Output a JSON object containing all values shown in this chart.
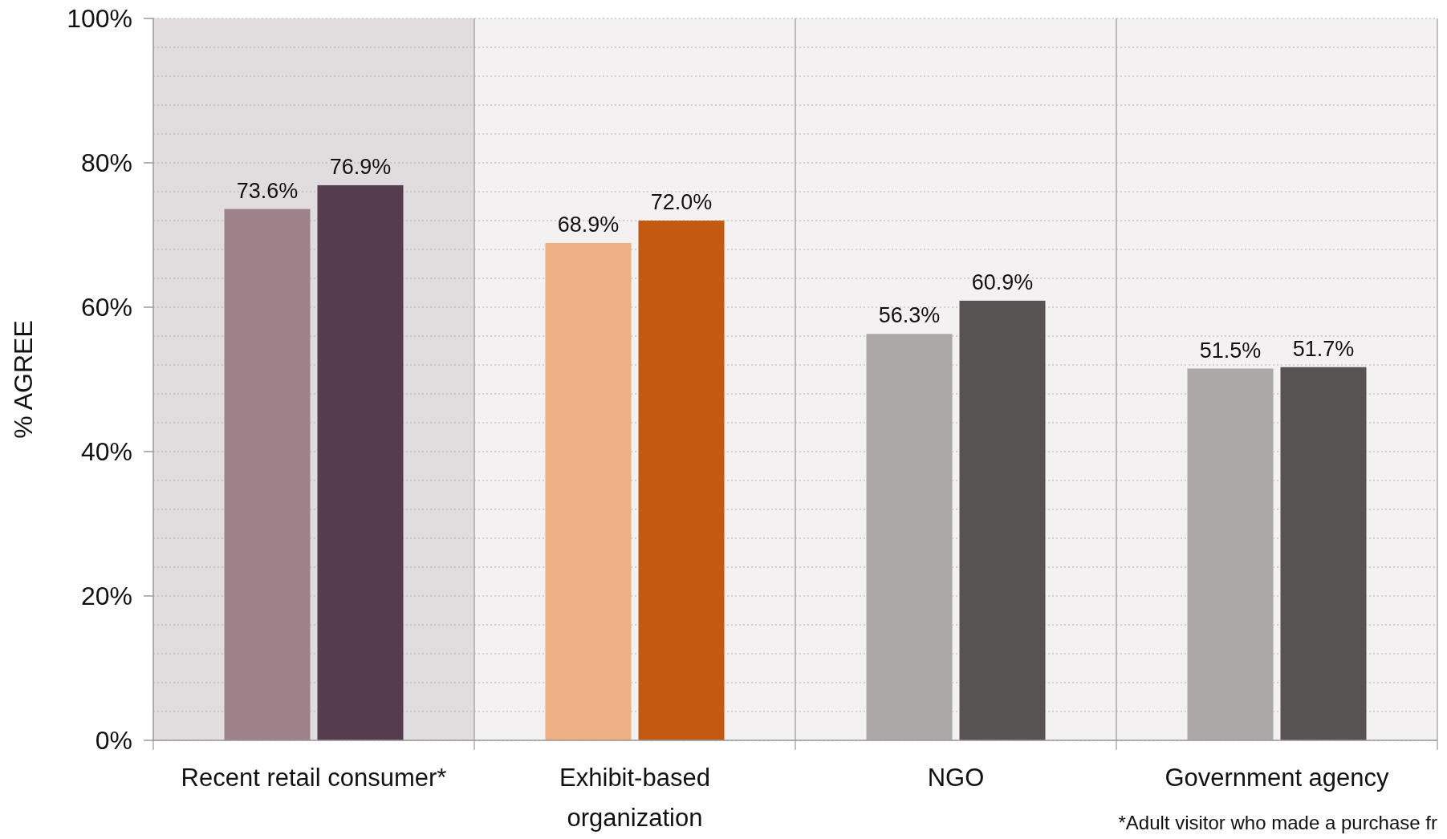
{
  "chart_data": {
    "type": "bar",
    "ylabel": "% AGREE",
    "categories": [
      "Recent retail consumer*",
      "Exhibit-based organization",
      "NGO",
      "Government agency"
    ],
    "series": [
      {
        "colors": [
          "#9d8389",
          "#ecb084",
          "#aca8a7",
          "#aca8a7"
        ],
        "values": [
          73.6,
          68.9,
          56.3,
          51.5
        ],
        "value_labels": [
          "73.6%",
          "68.9%",
          "56.3%",
          "51.5%"
        ]
      },
      {
        "colors": [
          "#553d4e",
          "#c45a12",
          "#575352",
          "#575352"
        ],
        "values": [
          76.9,
          72.0,
          60.9,
          51.7
        ],
        "value_labels": [
          "76.9%",
          "72.0%",
          "60.9%",
          "51.7%"
        ]
      }
    ],
    "ylim": [
      0,
      100
    ],
    "yticks": [
      {
        "value": 0,
        "label": "0%"
      },
      {
        "value": 4,
        "label": null
      },
      {
        "value": 8,
        "label": null
      },
      {
        "value": 12,
        "label": null
      },
      {
        "value": 16,
        "label": null
      },
      {
        "value": 20,
        "label": "20%"
      },
      {
        "value": 24,
        "label": null
      },
      {
        "value": 28,
        "label": null
      },
      {
        "value": 32,
        "label": null
      },
      {
        "value": 36,
        "label": null
      },
      {
        "value": 40,
        "label": "40%"
      },
      {
        "value": 44,
        "label": null
      },
      {
        "value": 48,
        "label": null
      },
      {
        "value": 52,
        "label": null
      },
      {
        "value": 56,
        "label": null
      },
      {
        "value": 60,
        "label": "60%"
      },
      {
        "value": 64,
        "label": null
      },
      {
        "value": 68,
        "label": null
      },
      {
        "value": 72,
        "label": null
      },
      {
        "value": 76,
        "label": null
      },
      {
        "value": 80,
        "label": "80%"
      },
      {
        "value": 84,
        "label": null
      },
      {
        "value": 88,
        "label": null
      },
      {
        "value": 92,
        "label": null
      },
      {
        "value": 96,
        "label": null
      },
      {
        "value": 100,
        "label": "100%"
      }
    ],
    "grid": "y",
    "bands": [
      {
        "axis": "x",
        "from": "Recent retail consumer*",
        "to": "Recent retail consumer*",
        "color": "#e1dcde"
      }
    ],
    "annotations": [
      "*Adult visitor who made a purchase fr"
    ]
  }
}
